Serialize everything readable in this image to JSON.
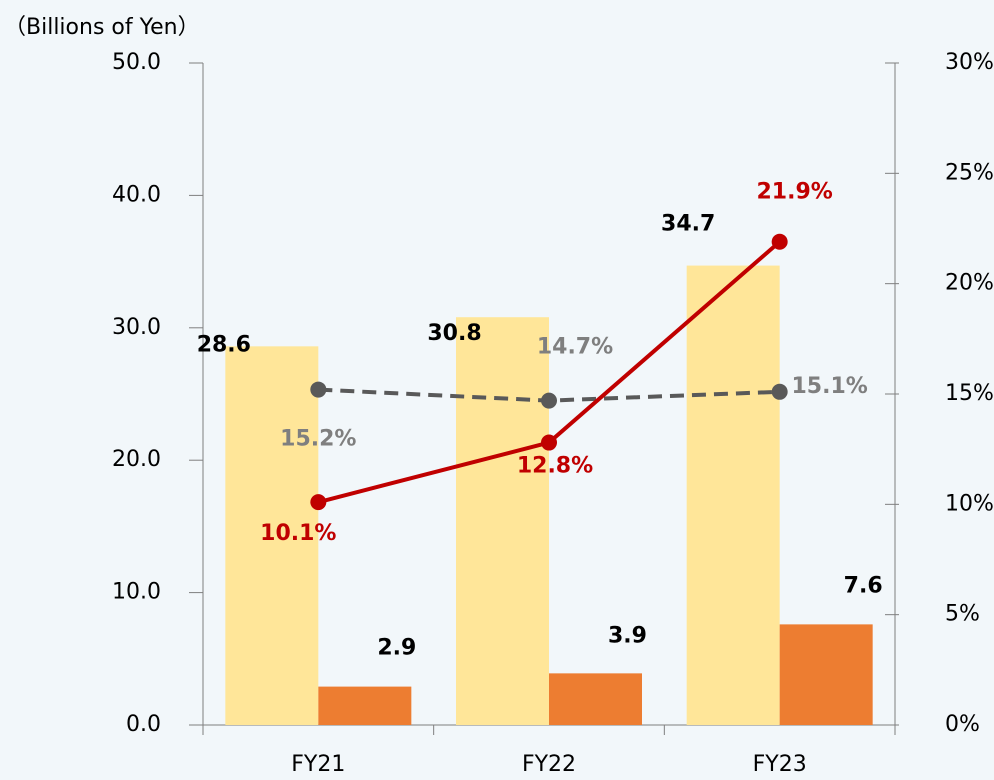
{
  "chart_data": {
    "type": "bar_line",
    "y_axis_label": "（Billions of Yen）",
    "categories": [
      "FY21",
      "FY22",
      "FY23"
    ],
    "ylim": [
      0,
      50
    ],
    "yticks": [
      {
        "value": 0,
        "label": "0.0"
      },
      {
        "value": 10,
        "label": "10.0"
      },
      {
        "value": 20,
        "label": "20.0"
      },
      {
        "value": 30,
        "label": "30.0"
      },
      {
        "value": 40,
        "label": "40.0"
      },
      {
        "value": 50,
        "label": "50.0"
      }
    ],
    "y2lim": [
      0,
      30
    ],
    "y2ticks": [
      {
        "value": 0,
        "label": "0%"
      },
      {
        "value": 5,
        "label": "5%"
      },
      {
        "value": 10,
        "label": "10%"
      },
      {
        "value": 15,
        "label": "15%"
      },
      {
        "value": 20,
        "label": "20%"
      },
      {
        "value": 25,
        "label": "25%"
      },
      {
        "value": 30,
        "label": "30%"
      }
    ],
    "series": [
      {
        "type": "bar",
        "color": "#FFE699",
        "label_color": "#000000",
        "values": [
          28.6,
          30.8,
          34.7
        ]
      },
      {
        "type": "bar",
        "color": "#ED7D31",
        "label_color": "#000000",
        "values": [
          2.9,
          3.9,
          7.6
        ]
      },
      {
        "type": "line",
        "axis": "y2",
        "dashed": true,
        "color": "#595959",
        "label_color": "#7f7f7f",
        "values": [
          15.2,
          14.7,
          15.1
        ],
        "value_labels": [
          "15.2%",
          "14.7%",
          "15.1%"
        ]
      },
      {
        "type": "line",
        "axis": "y2",
        "dashed": false,
        "color": "#C00000",
        "label_color": "#C00000",
        "values": [
          10.1,
          12.8,
          21.9
        ],
        "value_labels": [
          "10.1%",
          "12.8%",
          "21.9%"
        ]
      }
    ]
  }
}
